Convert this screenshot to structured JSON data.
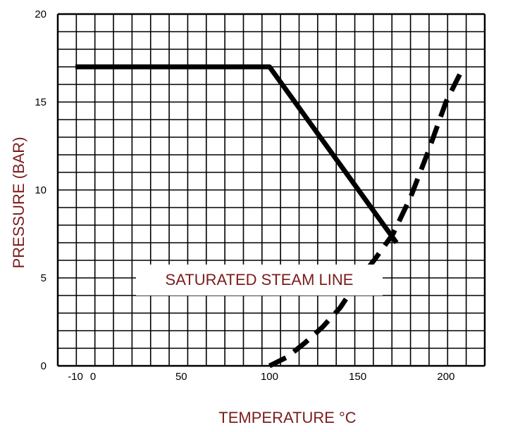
{
  "chart_data": {
    "type": "line",
    "title": "",
    "xlabel": "TEMPERATURE °C",
    "ylabel": "PRESSURE (BAR)",
    "xlim": [
      -20,
      222
    ],
    "ylim": [
      0,
      20
    ],
    "x_ticks": [
      -10,
      0,
      50,
      100,
      150,
      200
    ],
    "x_tick_labels": [
      "-10",
      "0",
      "50",
      "100",
      "150",
      "200"
    ],
    "y_ticks": [
      0,
      5,
      10,
      15,
      20
    ],
    "y_tick_labels": [
      "0",
      "5",
      "10",
      "15",
      "20"
    ],
    "grid": true,
    "annotation": "SATURATED STEAM LINE",
    "series": [
      {
        "style": "solid",
        "points": [
          [
            -10,
            17
          ],
          [
            100,
            17
          ],
          [
            172,
            7
          ]
        ]
      },
      {
        "style": "dashed",
        "points": [
          [
            100,
            0
          ],
          [
            110,
            0.5
          ],
          [
            120,
            1.3
          ],
          [
            130,
            2.2
          ],
          [
            140,
            3.3
          ],
          [
            150,
            4.8
          ],
          [
            160,
            6.1
          ],
          [
            170,
            7.5
          ],
          [
            180,
            9.6
          ],
          [
            190,
            12.2
          ],
          [
            200,
            15
          ],
          [
            210,
            17
          ]
        ]
      }
    ],
    "colors": {
      "line": "#000000",
      "grid": "#000000",
      "label": "#7b1c1c"
    }
  }
}
